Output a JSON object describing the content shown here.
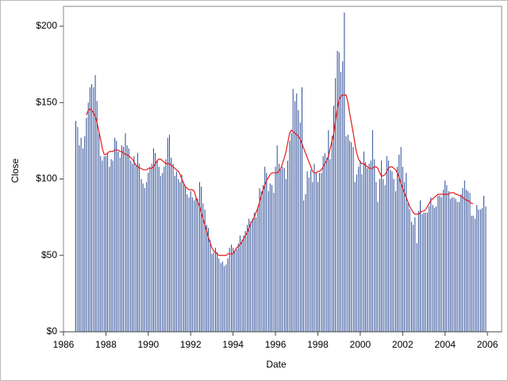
{
  "chart_data": {
    "type": "needle",
    "x_label": "Date",
    "y_label": "Close",
    "xlim": [
      1986,
      2006.67
    ],
    "ylim": [
      0,
      213
    ],
    "xticks": [
      1986,
      1988,
      1990,
      1992,
      1994,
      1996,
      1998,
      2000,
      2002,
      2004,
      2006
    ],
    "yticks": [
      {
        "value": 0,
        "label": "$0"
      },
      {
        "value": 50,
        "label": "$50"
      },
      {
        "value": 100,
        "label": "$100"
      },
      {
        "value": 150,
        "label": "$150"
      },
      {
        "value": 200,
        "label": "$200"
      }
    ],
    "x": [
      1986.58,
      1986.67,
      1986.75,
      1986.83,
      1986.92,
      1987.0,
      1987.08,
      1987.17,
      1987.25,
      1987.33,
      1987.42,
      1987.5,
      1987.58,
      1987.67,
      1987.75,
      1987.83,
      1987.92,
      1988.0,
      1988.08,
      1988.17,
      1988.25,
      1988.33,
      1988.42,
      1988.5,
      1988.58,
      1988.67,
      1988.75,
      1988.83,
      1988.92,
      1989.0,
      1989.08,
      1989.17,
      1989.25,
      1989.33,
      1989.42,
      1989.5,
      1989.58,
      1989.67,
      1989.75,
      1989.83,
      1989.92,
      1990.0,
      1990.08,
      1990.17,
      1990.25,
      1990.33,
      1990.42,
      1990.5,
      1990.58,
      1990.67,
      1990.75,
      1990.83,
      1990.92,
      1991.0,
      1991.08,
      1991.17,
      1991.25,
      1991.33,
      1991.42,
      1991.5,
      1991.58,
      1991.67,
      1991.75,
      1991.83,
      1991.92,
      1992.0,
      1992.08,
      1992.17,
      1992.25,
      1992.33,
      1992.42,
      1992.5,
      1992.58,
      1992.67,
      1992.75,
      1992.83,
      1992.92,
      1993.0,
      1993.08,
      1993.17,
      1993.25,
      1993.33,
      1993.42,
      1993.5,
      1993.58,
      1993.67,
      1993.75,
      1993.83,
      1993.92,
      1994.0,
      1994.08,
      1994.17,
      1994.25,
      1994.33,
      1994.42,
      1994.5,
      1994.58,
      1994.67,
      1994.75,
      1994.83,
      1994.92,
      1995.0,
      1995.08,
      1995.17,
      1995.25,
      1995.33,
      1995.42,
      1995.5,
      1995.58,
      1995.67,
      1995.75,
      1995.83,
      1995.92,
      1996.0,
      1996.08,
      1996.17,
      1996.25,
      1996.33,
      1996.42,
      1996.5,
      1996.58,
      1996.67,
      1996.75,
      1996.83,
      1996.92,
      1997.0,
      1997.08,
      1997.17,
      1997.25,
      1997.33,
      1997.42,
      1997.5,
      1997.58,
      1997.67,
      1997.75,
      1997.83,
      1997.92,
      1998.0,
      1998.08,
      1998.17,
      1998.25,
      1998.33,
      1998.42,
      1998.5,
      1998.58,
      1998.67,
      1998.75,
      1998.83,
      1998.92,
      1999.0,
      1999.08,
      1999.17,
      1999.25,
      1999.33,
      1999.42,
      1999.5,
      1999.58,
      1999.67,
      1999.75,
      1999.83,
      1999.92,
      2000.0,
      2000.08,
      2000.17,
      2000.25,
      2000.33,
      2000.42,
      2000.5,
      2000.58,
      2000.67,
      2000.75,
      2000.83,
      2000.92,
      2001.0,
      2001.08,
      2001.17,
      2001.25,
      2001.33,
      2001.42,
      2001.5,
      2001.58,
      2001.67,
      2001.75,
      2001.83,
      2001.92,
      2002.0,
      2002.08,
      2002.17,
      2002.25,
      2002.33,
      2002.42,
      2002.5,
      2002.58,
      2002.67,
      2002.75,
      2002.83,
      2002.92,
      2003.0,
      2003.08,
      2003.17,
      2003.25,
      2003.33,
      2003.42,
      2003.5,
      2003.58,
      2003.67,
      2003.75,
      2003.83,
      2003.92,
      2004.0,
      2004.08,
      2004.17,
      2004.25,
      2004.33,
      2004.42,
      2004.5,
      2004.58,
      2004.67,
      2004.75,
      2004.83,
      2004.92,
      2005.0,
      2005.08,
      2005.17,
      2005.25,
      2005.33,
      2005.42,
      2005.5,
      2005.58,
      2005.67,
      2005.75,
      2005.83,
      2005.92
    ],
    "series": [
      {
        "style": "needle",
        "color": "#2a4b96",
        "values": [
          138,
          134,
          122,
          127,
          120,
          128,
          140,
          150,
          160,
          162,
          160,
          168,
          151,
          130,
          115,
          112,
          115,
          115,
          117,
          108,
          113,
          112,
          127,
          125,
          118,
          114,
          122,
          121,
          130,
          122,
          120,
          112,
          110,
          115,
          109,
          117,
          110,
          100,
          97,
          94,
          98,
          104,
          108,
          110,
          120,
          117,
          112,
          108,
          102,
          104,
          108,
          113,
          127,
          129,
          114,
          110,
          102,
          105,
          100,
          98,
          103,
          98,
          95,
          90,
          88,
          92,
          88,
          86,
          88,
          87,
          98,
          95,
          84,
          80,
          70,
          68,
          60,
          51,
          52,
          55,
          52,
          48,
          45,
          46,
          43,
          44,
          48,
          55,
          57,
          55,
          53,
          54,
          58,
          63,
          60,
          63,
          66,
          70,
          74,
          72,
          74,
          78,
          75,
          82,
          94,
          92,
          96,
          108,
          104,
          92,
          97,
          96,
          91,
          108,
          122,
          110,
          106,
          108,
          107,
          100,
          112,
          125,
          130,
          159,
          151,
          156,
          145,
          137,
          160,
          86,
          90,
          105,
          101,
          106,
          98,
          110,
          104,
          98,
          104,
          104,
          115,
          117,
          114,
          132,
          113,
          128,
          148,
          166,
          184,
          183,
          170,
          177,
          209,
          128,
          129,
          125,
          124,
          121,
          98,
          103,
          108,
          112,
          103,
          118,
          111,
          107,
          110,
          112,
          132,
          113,
          98,
          85,
          100,
          112,
          100,
          96,
          115,
          112,
          106,
          105,
          100,
          92,
          108,
          116,
          121,
          108,
          98,
          104,
          84,
          80,
          72,
          70,
          75,
          58,
          79,
          86,
          77,
          78,
          78,
          78,
          82,
          88,
          83,
          81,
          82,
          89,
          89,
          88,
          93,
          99,
          96,
          92,
          87,
          88,
          88,
          87,
          85,
          85,
          90,
          94,
          99,
          93,
          92,
          91,
          76,
          76,
          74,
          83,
          80,
          80,
          81,
          89,
          82
        ]
      },
      {
        "style": "line",
        "color": "#e41a1c",
        "values": [
          null,
          null,
          null,
          null,
          null,
          null,
          142,
          145,
          146,
          145,
          143,
          141,
          137,
          131,
          126,
          120,
          116,
          116,
          117,
          118,
          118,
          118,
          119,
          119,
          119,
          118,
          118,
          117,
          116,
          116,
          115,
          114,
          113,
          111,
          109,
          108,
          107,
          107,
          106,
          106,
          106,
          107,
          107,
          107,
          108,
          110,
          112,
          113,
          113,
          112,
          111,
          110,
          110,
          110,
          109,
          108,
          107,
          106,
          105,
          103,
          100,
          97,
          95,
          94,
          93,
          93,
          93,
          92,
          88,
          85,
          82,
          78,
          74,
          70,
          66,
          62,
          58,
          55,
          53,
          52,
          51,
          50,
          50,
          50,
          50,
          50,
          51,
          51,
          51,
          51,
          53,
          55,
          56,
          57,
          59,
          61,
          63,
          65,
          68,
          71,
          73,
          75,
          78,
          81,
          85,
          89,
          93,
          96,
          99,
          101,
          103,
          104,
          104,
          104,
          104,
          105,
          107,
          110,
          114,
          118,
          124,
          130,
          132,
          131,
          130,
          129,
          128,
          126,
          123,
          120,
          117,
          114,
          111,
          108,
          105,
          104,
          104,
          105,
          105,
          106,
          108,
          110,
          112,
          115,
          120,
          125,
          130,
          138,
          146,
          152,
          154,
          155,
          155,
          155,
          150,
          143,
          137,
          130,
          123,
          117,
          113,
          111,
          110,
          110,
          109,
          108,
          107,
          107,
          107,
          108,
          108,
          107,
          104,
          102,
          102,
          103,
          105,
          107,
          108,
          108,
          107,
          106,
          104,
          101,
          97,
          94,
          91,
          88,
          85,
          82,
          80,
          78,
          77,
          77,
          77,
          78,
          79,
          79,
          80,
          82,
          84,
          86,
          87,
          88,
          89,
          90,
          90,
          90,
          90,
          90,
          90,
          90,
          91,
          91,
          91,
          90,
          90,
          89,
          89,
          88,
          87,
          86,
          86,
          85,
          84,
          84,
          null,
          null,
          null,
          null,
          null,
          null,
          null
        ]
      }
    ]
  }
}
